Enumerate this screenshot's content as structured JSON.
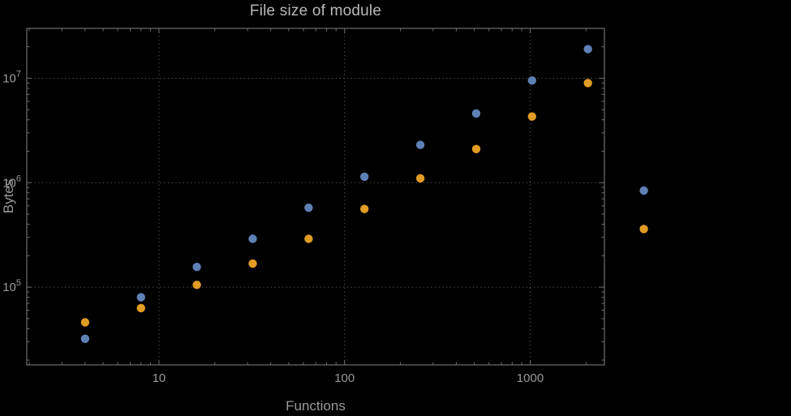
{
  "chart_data": {
    "type": "scatter",
    "title": "File size of module",
    "xlabel": "Functions",
    "ylabel": "Bytes",
    "xscale": "log",
    "yscale": "log",
    "xlim": [
      1.94,
      2512
    ],
    "ylim": [
      18000,
      30000000
    ],
    "grid": true,
    "legend": "none",
    "x_ticks": [
      {
        "value": 10,
        "label": "10"
      },
      {
        "value": 100,
        "label": "100"
      },
      {
        "value": 1000,
        "label": "1000"
      }
    ],
    "y_ticks": [
      {
        "value": 100000,
        "mantissa": "10",
        "exponent": "5"
      },
      {
        "value": 1000000,
        "mantissa": "10",
        "exponent": "6"
      },
      {
        "value": 10000000,
        "mantissa": "10",
        "exponent": "7"
      }
    ],
    "series": [
      {
        "name": "series-1",
        "color": "#5e81b5",
        "points": [
          [
            4,
            32000
          ],
          [
            8,
            80000
          ],
          [
            16,
            156000
          ],
          [
            32,
            290000
          ],
          [
            64,
            575000
          ],
          [
            128,
            1140000
          ],
          [
            256,
            2300000
          ],
          [
            512,
            4600000
          ],
          [
            1024,
            9500000
          ],
          [
            2048,
            19000000
          ],
          [
            4096,
            840000
          ]
        ]
      },
      {
        "name": "series-2",
        "color": "#e19c24",
        "points": [
          [
            4,
            46000
          ],
          [
            8,
            63000
          ],
          [
            16,
            105000
          ],
          [
            32,
            168000
          ],
          [
            64,
            290000
          ],
          [
            128,
            560000
          ],
          [
            256,
            1100000
          ],
          [
            512,
            2100000
          ],
          [
            1024,
            4300000
          ],
          [
            2048,
            9000000
          ],
          [
            4096,
            360000
          ]
        ]
      }
    ]
  },
  "theme": {
    "background": "#000000",
    "title_color": "#b9b9b9",
    "label_color": "#9a9a9a",
    "frame_color": "#6e6e6e",
    "grid_color": "#565656"
  }
}
